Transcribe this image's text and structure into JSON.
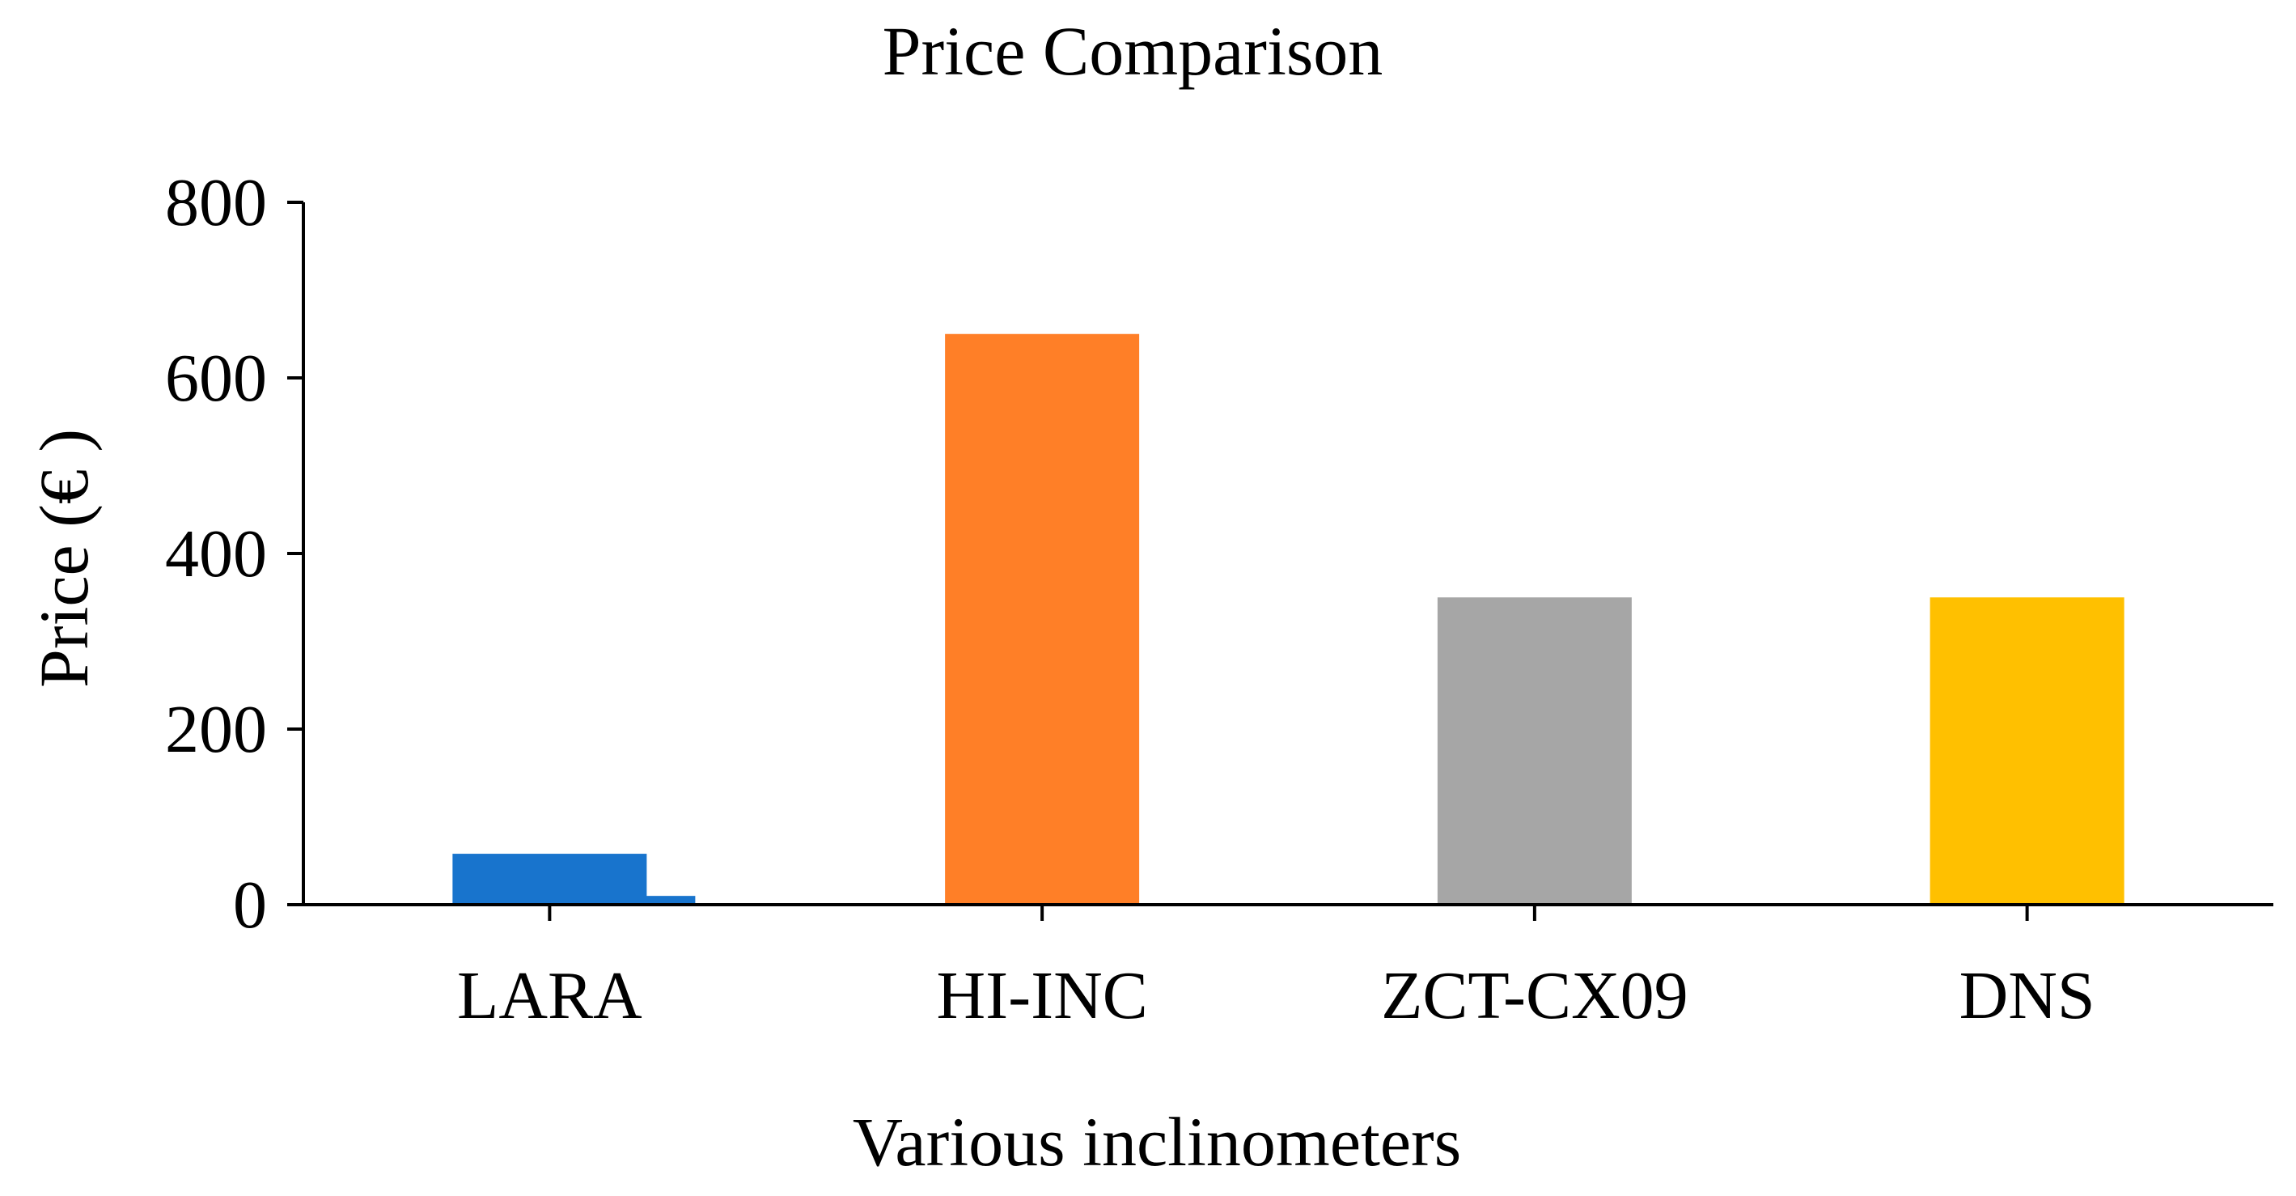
{
  "chart_data": {
    "type": "bar",
    "title": "Price Comparison",
    "xlabel": "Various inclinometers",
    "ylabel": "Price (€ )",
    "categories": [
      "LARA",
      "HI-INC",
      "ZCT-CX09",
      "DNS"
    ],
    "series": [
      {
        "values": [
          58,
          650,
          350,
          350
        ]
      },
      {
        "values": [
          10,
          null,
          null,
          null
        ]
      }
    ],
    "colors": [
      "#1874CD",
      "#FF7F27",
      "#A6A6A6",
      "#FFC000"
    ],
    "ylim": [
      0,
      800
    ],
    "yticks": [
      0,
      200,
      400,
      600,
      800
    ],
    "grid": false,
    "legend": "none"
  }
}
